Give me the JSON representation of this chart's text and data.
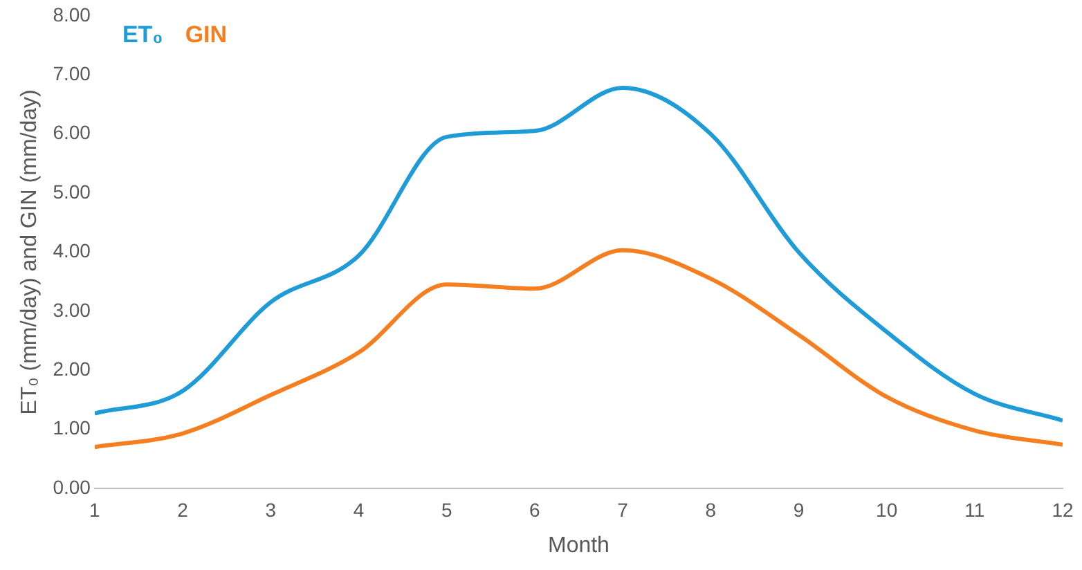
{
  "chart_data": {
    "type": "line",
    "xlabel": "Month",
    "ylabel": "ET₀ (mm/day) and GIN (mm/day)",
    "x": [
      1,
      2,
      3,
      4,
      5,
      6,
      7,
      8,
      9,
      10,
      11,
      12
    ],
    "series": [
      {
        "name": "ET₀",
        "color": "#1f9bd7",
        "values": [
          1.27,
          1.65,
          3.15,
          3.94,
          5.95,
          6.05,
          6.78,
          6.0,
          4.0,
          2.65,
          1.6,
          1.15
        ]
      },
      {
        "name": "GIN",
        "color": "#f57f20",
        "values": [
          0.7,
          0.93,
          1.58,
          2.3,
          3.45,
          3.38,
          4.03,
          3.55,
          2.6,
          1.55,
          0.98,
          0.74
        ]
      }
    ],
    "xlim": [
      1,
      12
    ],
    "xticks": [
      1,
      2,
      3,
      4,
      5,
      6,
      7,
      8,
      9,
      10,
      11,
      12
    ],
    "ylim": [
      0,
      8
    ],
    "yticks": [
      {
        "value": 0,
        "label": "0.00"
      },
      {
        "value": 1,
        "label": "1.00"
      },
      {
        "value": 2,
        "label": "2.00"
      },
      {
        "value": 3,
        "label": "3.00"
      },
      {
        "value": 4,
        "label": "4.00"
      },
      {
        "value": 5,
        "label": "5.00"
      },
      {
        "value": 6,
        "label": "6.00"
      },
      {
        "value": 7,
        "label": "7.00"
      },
      {
        "value": 8,
        "label": "8.00"
      }
    ],
    "grid": false,
    "legend": "top left",
    "marker": "none",
    "line_style": "solid"
  }
}
